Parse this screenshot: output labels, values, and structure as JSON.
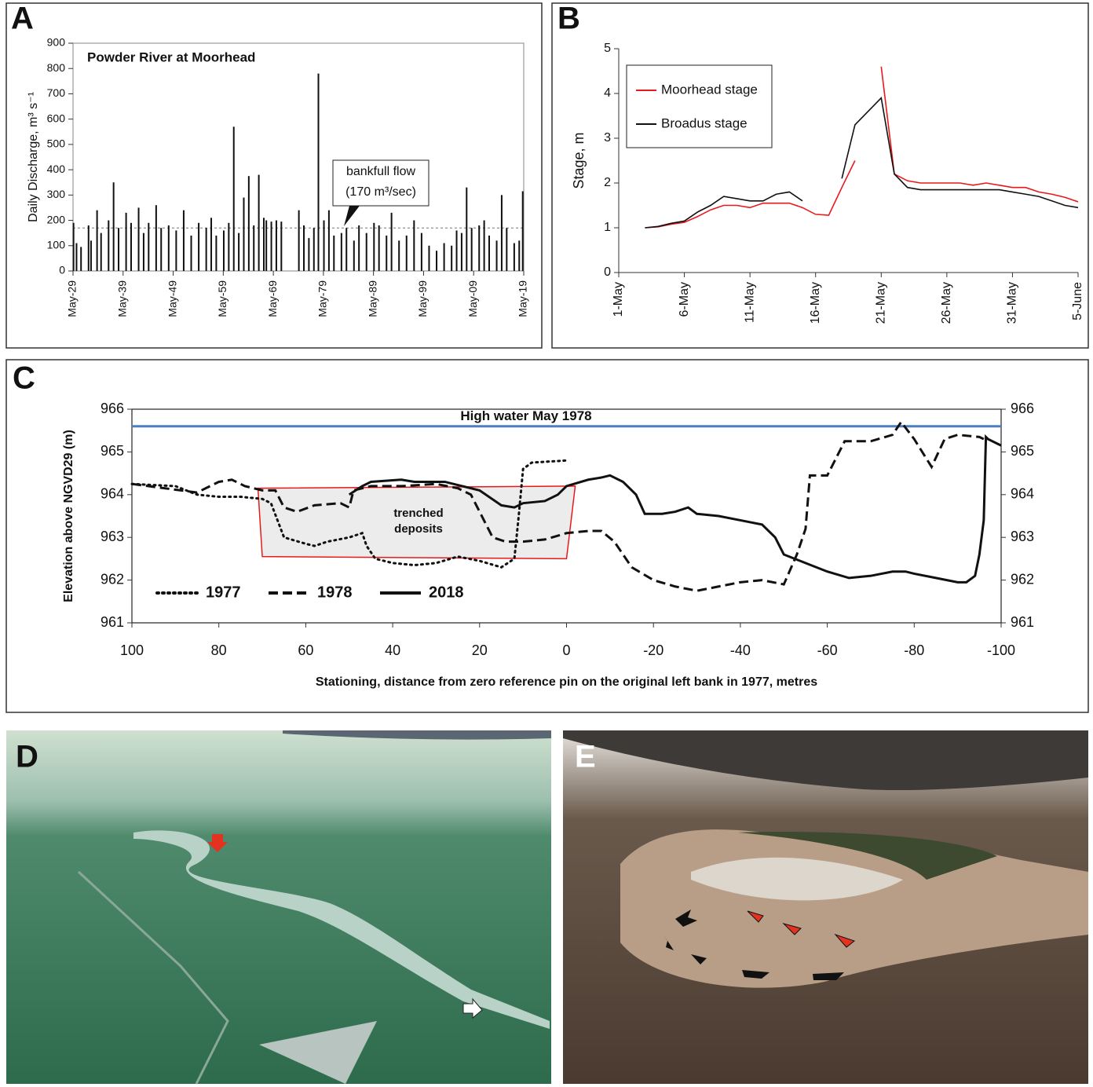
{
  "chart_data": [
    {
      "type": "bar",
      "panel": "A",
      "title": "Powder River at Moorhead",
      "y_label": "Daily Discharge, m³ s⁻¹",
      "annotation_lines": [
        "bankfull flow",
        "(170 m³/sec)"
      ],
      "reference_line": 170,
      "color": "#111111",
      "x": [
        1929.5,
        1930.1,
        1931,
        1932.5,
        1933,
        1934.2,
        1935,
        1936.5,
        1937.5,
        1938.5,
        1940,
        1941,
        1942.5,
        1943.5,
        1944.5,
        1946,
        1947,
        1948.5,
        1950,
        1951.5,
        1953,
        1954.5,
        1956,
        1957,
        1958,
        1959.5,
        1960.5,
        1961.5,
        1962.5,
        1963.5,
        1964.5,
        1965.5,
        1966.5,
        1967.5,
        1968,
        1969,
        1970,
        1971,
        1974.5,
        1975.5,
        1976.5,
        1977.5,
        1978.4,
        1979.5,
        1980.5,
        1981.5,
        1983,
        1984,
        1985.5,
        1986.5,
        1988,
        1989.5,
        1990.5,
        1992,
        1993,
        1994.5,
        1996,
        1997.5,
        1999,
        2000.5,
        2002,
        2003.5,
        2005,
        2006,
        2007,
        2008,
        2009,
        2010.5,
        2011.5,
        2012.5,
        2014,
        2015,
        2016,
        2017.5,
        2018.5,
        2019.2
      ],
      "values": [
        190,
        110,
        95,
        180,
        120,
        240,
        150,
        200,
        350,
        170,
        230,
        190,
        250,
        150,
        190,
        260,
        170,
        180,
        160,
        240,
        140,
        190,
        170,
        210,
        140,
        160,
        190,
        570,
        150,
        290,
        375,
        180,
        380,
        210,
        200,
        195,
        200,
        195,
        240,
        180,
        130,
        170,
        780,
        200,
        240,
        140,
        150,
        170,
        120,
        180,
        150,
        190,
        180,
        140,
        230,
        120,
        140,
        200,
        150,
        100,
        80,
        110,
        100,
        160,
        150,
        330,
        170,
        180,
        200,
        140,
        120,
        300,
        170,
        110,
        120,
        315
      ],
      "xlim": [
        1929.4,
        2019.4
      ],
      "xticks": [
        {
          "value": 1929.4,
          "label": "May-29"
        },
        {
          "value": 1939.4,
          "label": "May-39"
        },
        {
          "value": 1949.4,
          "label": "May-49"
        },
        {
          "value": 1959.4,
          "label": "May-59"
        },
        {
          "value": 1969.4,
          "label": "May-69"
        },
        {
          "value": 1979.4,
          "label": "May-79"
        },
        {
          "value": 1989.4,
          "label": "May-89"
        },
        {
          "value": 1999.4,
          "label": "May-99"
        },
        {
          "value": 2009.4,
          "label": "May-09"
        },
        {
          "value": 2019.4,
          "label": "May-19"
        }
      ],
      "ylim": [
        0,
        900
      ],
      "yticks": [
        0,
        100,
        200,
        300,
        400,
        500,
        600,
        700,
        800,
        900
      ]
    },
    {
      "type": "line",
      "panel": "B",
      "y_label": "Stage, m",
      "legend": "top-left",
      "x": [
        "3-May",
        "4-May",
        "5-May",
        "6-May",
        "7-May",
        "8-May",
        "9-May",
        "10-May",
        "11-May",
        "12-May",
        "13-May",
        "14-May",
        "15-May",
        "16-May",
        "17-May",
        "18-May",
        "19-May",
        "20-May",
        "21-May",
        "22-May",
        "23-May",
        "24-May",
        "25-May",
        "26-May",
        "27-May",
        "28-May",
        "29-May",
        "30-May",
        "31-May",
        "1-June",
        "2-June",
        "3-June",
        "4-June",
        "5-June"
      ],
      "series": [
        {
          "name": "Moorhead stage",
          "color": "#e8191c",
          "values": [
            1.0,
            1.02,
            1.08,
            1.12,
            1.25,
            1.4,
            1.5,
            1.5,
            1.45,
            1.55,
            1.55,
            1.55,
            1.45,
            1.3,
            1.28,
            1.9,
            2.5,
            null,
            4.6,
            2.2,
            2.05,
            2.0,
            2.0,
            2.0,
            2.0,
            1.95,
            2.0,
            1.95,
            1.9,
            1.9,
            1.8,
            1.75,
            1.68,
            1.58
          ]
        },
        {
          "name": "Broadus stage",
          "color": "#111111",
          "values": [
            1.0,
            1.03,
            1.1,
            1.15,
            1.35,
            1.5,
            1.7,
            1.65,
            1.6,
            1.6,
            1.75,
            1.8,
            1.6,
            null,
            null,
            2.1,
            3.3,
            3.6,
            3.9,
            2.2,
            1.9,
            1.85,
            1.85,
            1.85,
            1.85,
            1.85,
            1.85,
            1.85,
            1.8,
            1.75,
            1.7,
            1.6,
            1.5,
            1.45
          ]
        }
      ],
      "xlim": [
        "1-May",
        "5-June"
      ],
      "xticks": [
        "1-May",
        "6-May",
        "11-May",
        "16-May",
        "21-May",
        "26-May",
        "31-May",
        "5-June"
      ],
      "ylim": [
        0,
        5
      ],
      "yticks": [
        0,
        1,
        2,
        3,
        4,
        5
      ]
    },
    {
      "type": "line",
      "panel": "C",
      "y_label": "Elevation above NGVD29 (m)",
      "x_label": "Stationing, distance from zero reference pin on the original left bank in 1977, metres",
      "reference_line": 965.6,
      "reference_label": "High water May 1978",
      "reference_color": "#4a7fc1",
      "annotation_lines": [
        "trenched",
        "deposits"
      ],
      "region": {
        "x": [
          71,
          70,
          0,
          -2
        ],
        "y": [
          964.15,
          962.55,
          962.5,
          964.2
        ],
        "color": "#e8191c",
        "fill": "#ececec"
      },
      "series": [
        {
          "name": "1977",
          "color": "#111111",
          "style": "dotted",
          "x": [
            100,
            90,
            85,
            80,
            75,
            70,
            68,
            65,
            60,
            58,
            55,
            50,
            47,
            46,
            44,
            40,
            35,
            30,
            25,
            20,
            15,
            12,
            11,
            10,
            8,
            0
          ],
          "values": [
            964.25,
            964.2,
            964.0,
            963.95,
            963.95,
            963.9,
            963.8,
            963.0,
            962.85,
            962.8,
            962.9,
            963.0,
            963.1,
            962.8,
            962.5,
            962.4,
            962.35,
            962.4,
            962.55,
            962.45,
            962.3,
            962.5,
            963.5,
            964.6,
            964.75,
            964.8
          ]
        },
        {
          "name": "1978",
          "color": "#111111",
          "style": "dashed",
          "x": [
            100,
            85,
            80,
            77,
            74,
            70,
            67,
            65,
            62,
            58,
            52,
            50,
            49,
            45,
            38,
            30,
            25,
            22,
            20,
            17,
            14,
            10,
            5,
            0,
            -5,
            -8,
            -11,
            -15,
            -20,
            -25,
            -30,
            -35,
            -40,
            -45,
            -50,
            -53,
            -55,
            -56,
            -60,
            -64,
            -70,
            -75,
            -77,
            -80,
            -84,
            -87,
            -90,
            -95,
            -96
          ],
          "values": [
            964.25,
            964.05,
            964.3,
            964.35,
            964.2,
            964.1,
            964.1,
            963.7,
            963.6,
            963.75,
            963.8,
            963.7,
            964.1,
            964.2,
            964.2,
            964.25,
            964.15,
            964.0,
            963.6,
            963.0,
            962.9,
            962.9,
            962.95,
            963.1,
            963.15,
            963.15,
            962.9,
            962.3,
            962.0,
            961.85,
            961.75,
            961.85,
            961.95,
            962.0,
            961.9,
            962.6,
            963.2,
            964.45,
            964.45,
            965.25,
            965.25,
            965.4,
            965.7,
            965.3,
            964.65,
            965.3,
            965.4,
            965.35,
            965.3
          ]
        },
        {
          "name": "2018",
          "color": "#111111",
          "style": "solid",
          "x": [
            50,
            47,
            45,
            38,
            35,
            28,
            20,
            15,
            12,
            10,
            5,
            2,
            0,
            -5,
            -8,
            -10,
            -13,
            -16,
            -18,
            -22,
            -25,
            -28,
            -30,
            -35,
            -40,
            -45,
            -48,
            -50,
            -55,
            -60,
            -65,
            -70,
            -75,
            -78,
            -80,
            -85,
            -90,
            -92,
            -94,
            -95,
            -96,
            -96.5,
            -97,
            -100
          ],
          "values": [
            964.0,
            964.2,
            964.3,
            964.35,
            964.3,
            964.3,
            964.1,
            963.75,
            963.7,
            963.8,
            963.85,
            964.0,
            964.2,
            964.35,
            964.4,
            964.45,
            964.3,
            964.0,
            963.55,
            963.55,
            963.6,
            963.7,
            963.55,
            963.5,
            963.4,
            963.3,
            963.0,
            962.6,
            962.4,
            962.2,
            962.05,
            962.1,
            962.2,
            962.2,
            962.15,
            962.05,
            961.95,
            961.95,
            962.1,
            962.6,
            963.4,
            965.35,
            965.3,
            965.15
          ]
        }
      ],
      "xlim": [
        100,
        -100
      ],
      "xticks": [
        100,
        80,
        60,
        40,
        20,
        0,
        -20,
        -40,
        -60,
        -80,
        -100
      ],
      "ylim": [
        961,
        966
      ],
      "yticks": [
        961,
        962,
        963,
        964,
        965,
        966
      ],
      "y2lim": [
        961,
        966
      ],
      "y2ticks": [
        961,
        962,
        963,
        964,
        965,
        966
      ]
    }
  ],
  "photos": [
    {
      "label": "D"
    },
    {
      "label": "E"
    }
  ]
}
